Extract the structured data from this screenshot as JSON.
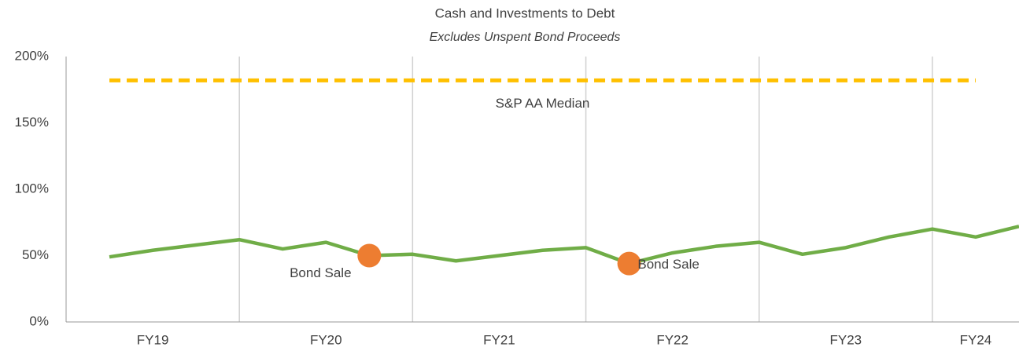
{
  "chart_data": {
    "type": "line",
    "title": "Cash and Investments to Debt",
    "subtitle": "Excludes Unspent Bond Proceeds",
    "xlim": [
      0,
      22
    ],
    "xticks": [
      {
        "value": 2,
        "label": "FY19"
      },
      {
        "value": 6,
        "label": "FY20"
      },
      {
        "value": 10,
        "label": "FY21"
      },
      {
        "value": 14,
        "label": "FY22"
      },
      {
        "value": 18,
        "label": "FY23"
      },
      {
        "value": 21,
        "label": "FY24"
      }
    ],
    "xgrid": [
      4,
      8,
      12,
      16,
      20
    ],
    "ylim": [
      0,
      200
    ],
    "yticks": [
      {
        "value": 0,
        "label": "0%"
      },
      {
        "value": 50,
        "label": "50%"
      },
      {
        "value": 100,
        "label": "100%"
      },
      {
        "value": 150,
        "label": "150%"
      },
      {
        "value": 200,
        "label": "200%"
      }
    ],
    "series": [
      {
        "name": "S&P AA Median",
        "color": "#ffc000",
        "dashed": true,
        "x": [
          1,
          21
        ],
        "values": [
          182,
          182
        ]
      },
      {
        "color": "#70ad47",
        "x": [
          1,
          2,
          3,
          4,
          5,
          6,
          7,
          8,
          9,
          10,
          11,
          12,
          13,
          14,
          15,
          16,
          17,
          18,
          19,
          20,
          21,
          22
        ],
        "values": [
          49,
          54,
          58,
          62,
          55,
          60,
          50,
          51,
          46,
          50,
          54,
          56,
          44,
          52,
          57,
          60,
          51,
          56,
          64,
          70,
          64,
          72
        ]
      }
    ],
    "annotations": [
      {
        "text": "Bond Sale",
        "x": 7,
        "y": 50,
        "color": "#ed7d31"
      },
      {
        "text": "Bond Sale",
        "x": 13,
        "y": 44,
        "color": "#ed7d31"
      }
    ]
  }
}
